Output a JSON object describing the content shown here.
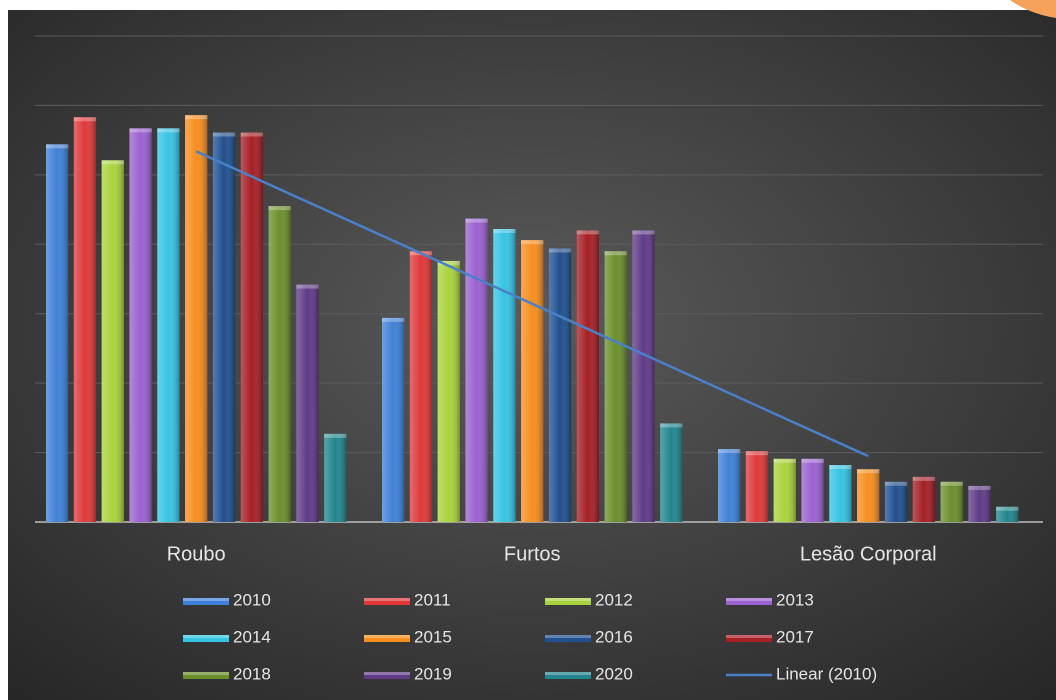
{
  "chart_data": {
    "type": "bar",
    "categories": [
      "Roubo",
      "Furtos",
      "Lesão Corporal"
    ],
    "series": [
      {
        "name": "2010",
        "color": "#3f80d8",
        "values": [
          5.44,
          2.94,
          1.05
        ]
      },
      {
        "name": "2011",
        "color": "#e0383a",
        "values": [
          5.83,
          3.9,
          1.02
        ]
      },
      {
        "name": "2012",
        "color": "#a9d33d",
        "values": [
          5.21,
          3.76,
          0.91
        ]
      },
      {
        "name": "2013",
        "color": "#9b61d0",
        "values": [
          5.67,
          4.37,
          0.91
        ]
      },
      {
        "name": "2014",
        "color": "#35c4e2",
        "values": [
          5.67,
          4.22,
          0.82
        ]
      },
      {
        "name": "2015",
        "color": "#f78e1e",
        "values": [
          5.86,
          4.06,
          0.76
        ]
      },
      {
        "name": "2016",
        "color": "#20508f",
        "values": [
          5.61,
          3.94,
          0.58
        ]
      },
      {
        "name": "2017",
        "color": "#a61f25",
        "values": [
          5.61,
          4.2,
          0.65
        ]
      },
      {
        "name": "2018",
        "color": "#6b8f2a",
        "values": [
          4.55,
          3.9,
          0.58
        ]
      },
      {
        "name": "2019",
        "color": "#5f3b87",
        "values": [
          3.42,
          4.2,
          0.52
        ]
      },
      {
        "name": "2020",
        "color": "#21868f",
        "values": [
          1.27,
          1.42,
          0.22
        ]
      }
    ],
    "trendline": {
      "name": "Linear (2010)",
      "series": 0,
      "color": "#4a80c9"
    },
    "ylim": [
      0,
      7
    ],
    "yticks": [
      0,
      1,
      2,
      3,
      4,
      5,
      6,
      7
    ],
    "grid": true
  }
}
